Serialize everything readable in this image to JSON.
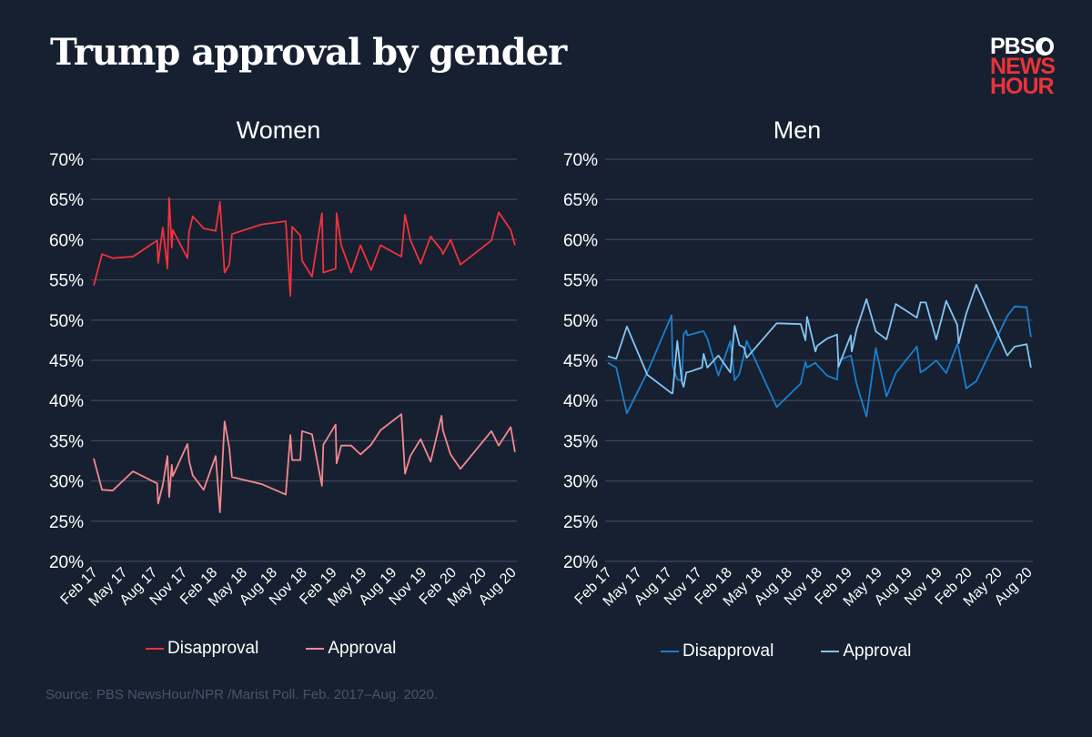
{
  "title": "Trump approval by gender",
  "logo": {
    "line1": "PBS",
    "line2": "NEWS",
    "line3": "HOUR"
  },
  "source": "Source: PBS NewsHour/NPR /Marist Poll. Feb. 2017–Aug. 2020.",
  "colors": {
    "background": "#172030",
    "grid": "#3a4558",
    "women_disapproval": "#f0323c",
    "women_approval": "#f3898e",
    "men_disapproval": "#1a7fcf",
    "men_approval": "#82c6f5"
  },
  "chart_data": [
    {
      "type": "line",
      "title": "Women",
      "ylim": [
        20,
        70
      ],
      "xlim": [
        "2017-02-01",
        "2020-08-01"
      ],
      "y_ticks": [
        "20%",
        "25%",
        "30%",
        "35%",
        "40%",
        "45%",
        "50%",
        "55%",
        "60%",
        "65%",
        "70%"
      ],
      "x_ticks": [
        "Feb 17",
        "May 17",
        "Aug 17",
        "Nov 17",
        "Feb 18",
        "May 18",
        "Aug 18",
        "Nov 18",
        "Feb 19",
        "May 19",
        "Aug 19",
        "Nov 19",
        "Feb 20",
        "May 20",
        "Aug 20"
      ],
      "grid": true,
      "legend": "bottom",
      "x": [
        "2017-02-01",
        "2017-02-26",
        "2017-03-28",
        "2017-05-29",
        "2017-08-12",
        "2017-08-15",
        "2017-08-29",
        "2017-09-13",
        "2017-09-18",
        "2017-09-26",
        "2017-09-29",
        "2017-11-13",
        "2017-11-18",
        "2017-11-29",
        "2018-01-02",
        "2018-02-08",
        "2018-02-21",
        "2018-03-05",
        "2018-03-19",
        "2018-03-27",
        "2018-06-27",
        "2018-09-09",
        "2018-09-23",
        "2018-09-28",
        "2018-10-23",
        "2018-10-28",
        "2018-11-28",
        "2018-12-28",
        "2019-01-02",
        "2019-02-09",
        "2019-02-12",
        "2019-02-26",
        "2019-03-26",
        "2019-04-24",
        "2019-05-26",
        "2019-06-24",
        "2019-08-27",
        "2019-09-08",
        "2019-09-24",
        "2019-10-25",
        "2019-11-25",
        "2019-12-28",
        "2020-01-02",
        "2020-01-25",
        "2020-02-25",
        "2020-05-28",
        "2020-06-20",
        "2020-07-26",
        "2020-08-09"
      ],
      "series": [
        {
          "name": "Disapproval",
          "color": "#f0323c",
          "values": [
            54.3,
            58.2,
            57.7,
            57.9,
            59.9,
            57.1,
            61.5,
            56.4,
            65.2,
            59.0,
            61.2,
            57.7,
            61.0,
            62.9,
            61.4,
            61.1,
            64.7,
            55.9,
            56.9,
            60.7,
            61.9,
            62.3,
            53.0,
            61.6,
            60.5,
            57.4,
            55.4,
            63.3,
            55.9,
            56.4,
            63.3,
            59.3,
            55.9,
            59.3,
            56.2,
            59.3,
            57.9,
            63.1,
            60.0,
            57.0,
            60.4,
            58.7,
            58.2,
            60.0,
            56.9,
            59.9,
            63.4,
            61.2,
            59.3
          ]
        },
        {
          "name": "Approval",
          "color": "#f3898e",
          "values": [
            32.8,
            28.9,
            28.8,
            31.2,
            29.7,
            27.2,
            29.5,
            33.1,
            28.0,
            32.0,
            30.6,
            34.6,
            32.5,
            30.7,
            28.9,
            33.1,
            26.1,
            37.4,
            34.1,
            30.5,
            29.6,
            28.3,
            35.7,
            32.6,
            32.6,
            36.2,
            35.8,
            29.4,
            34.5,
            37.0,
            32.2,
            34.4,
            34.4,
            33.3,
            34.5,
            36.3,
            38.3,
            30.9,
            33.1,
            35.2,
            32.4,
            38.1,
            36.3,
            33.3,
            31.5,
            36.2,
            34.4,
            36.7,
            33.6
          ]
        }
      ]
    },
    {
      "type": "line",
      "title": "Men",
      "ylim": [
        20,
        70
      ],
      "xlim": [
        "2017-02-01",
        "2020-08-01"
      ],
      "y_ticks": [
        "20%",
        "25%",
        "30%",
        "35%",
        "40%",
        "45%",
        "50%",
        "55%",
        "60%",
        "65%",
        "70%"
      ],
      "x_ticks": [
        "Feb 17",
        "May 17",
        "Aug 17",
        "Nov 17",
        "Feb 18",
        "May 18",
        "Aug 18",
        "Nov 18",
        "Feb 19",
        "May 19",
        "Aug 19",
        "Nov 19",
        "Feb 20",
        "May 20",
        "Aug 20"
      ],
      "grid": true,
      "legend": "bottom",
      "x": [
        "2017-02-01",
        "2017-02-26",
        "2017-03-28",
        "2017-05-29",
        "2017-08-12",
        "2017-08-15",
        "2017-08-29",
        "2017-09-13",
        "2017-09-18",
        "2017-09-26",
        "2017-09-29",
        "2017-11-13",
        "2017-11-18",
        "2017-11-29",
        "2018-01-02",
        "2018-02-08",
        "2018-02-21",
        "2018-03-05",
        "2018-03-19",
        "2018-03-27",
        "2018-06-27",
        "2018-09-09",
        "2018-09-23",
        "2018-09-28",
        "2018-10-23",
        "2018-10-28",
        "2018-11-28",
        "2018-12-28",
        "2019-01-02",
        "2019-02-09",
        "2019-02-12",
        "2019-02-26",
        "2019-03-26",
        "2019-04-24",
        "2019-05-26",
        "2019-06-24",
        "2019-08-27",
        "2019-09-08",
        "2019-09-24",
        "2019-10-25",
        "2019-11-25",
        "2019-12-28",
        "2020-01-02",
        "2020-01-25",
        "2020-02-25",
        "2020-05-28",
        "2020-06-20",
        "2020-07-26",
        "2020-08-09"
      ],
      "series": [
        {
          "name": "Disapproval",
          "color": "#1a7fcf",
          "values": [
            44.7,
            44.1,
            38.4,
            43.5,
            50.6,
            44.4,
            42.6,
            42.5,
            48.2,
            48.7,
            48.1,
            48.6,
            48.6,
            47.7,
            43.1,
            47.4,
            42.5,
            43.3,
            45.7,
            47.4,
            39.2,
            42.1,
            44.8,
            44.1,
            44.7,
            44.4,
            43.1,
            42.6,
            45.0,
            45.6,
            45.1,
            42.1,
            38.0,
            46.5,
            40.5,
            43.4,
            46.7,
            43.5,
            43.9,
            45.0,
            43.4,
            47.0,
            46.5,
            41.5,
            42.4,
            50.5,
            51.7,
            51.6,
            47.9
          ]
        },
        {
          "name": "Approval",
          "color": "#82c6f5",
          "values": [
            45.5,
            45.2,
            49.2,
            43.2,
            40.9,
            40.9,
            47.4,
            42.3,
            41.7,
            43.5,
            43.5,
            44.1,
            45.8,
            44.1,
            45.6,
            43.5,
            49.3,
            46.9,
            46.6,
            45.3,
            49.6,
            49.5,
            47.5,
            50.4,
            46.1,
            46.8,
            47.7,
            48.2,
            44.2,
            48.1,
            46.1,
            48.8,
            52.6,
            48.6,
            47.6,
            52.0,
            50.3,
            52.2,
            52.2,
            47.6,
            52.4,
            49.4,
            47.1,
            50.8,
            54.4,
            45.6,
            46.7,
            47.0,
            44.1
          ]
        }
      ]
    }
  ]
}
